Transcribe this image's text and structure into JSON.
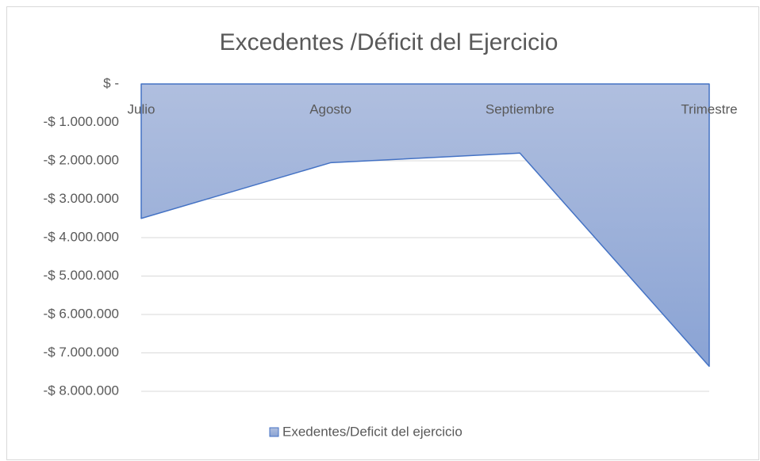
{
  "chart_data": {
    "type": "area",
    "title": "Excedentes /Déficit del Ejercicio",
    "categories": [
      "Julio",
      "Agosto",
      "Septiembre",
      "Trimestre"
    ],
    "series": [
      {
        "name": "Exedentes/Deficit del ejercicio",
        "color": "#4472c4",
        "values": [
          -3500000,
          -2050000,
          -1800000,
          -7350000
        ]
      }
    ],
    "ylim": [
      -8000000,
      0
    ],
    "yticks": [
      {
        "value": 0,
        "label": "$ -"
      },
      {
        "value": -1000000,
        "label": "-$ 1.000.000"
      },
      {
        "value": -2000000,
        "label": "-$ 2.000.000"
      },
      {
        "value": -3000000,
        "label": "-$ 3.000.000"
      },
      {
        "value": -4000000,
        "label": "-$ 4.000.000"
      },
      {
        "value": -5000000,
        "label": "-$ 5.000.000"
      },
      {
        "value": -6000000,
        "label": "-$ 6.000.000"
      },
      {
        "value": -7000000,
        "label": "-$ 7.000.000"
      },
      {
        "value": -8000000,
        "label": "-$ 8.000.000"
      }
    ],
    "grid": true,
    "legend": "bottom"
  }
}
